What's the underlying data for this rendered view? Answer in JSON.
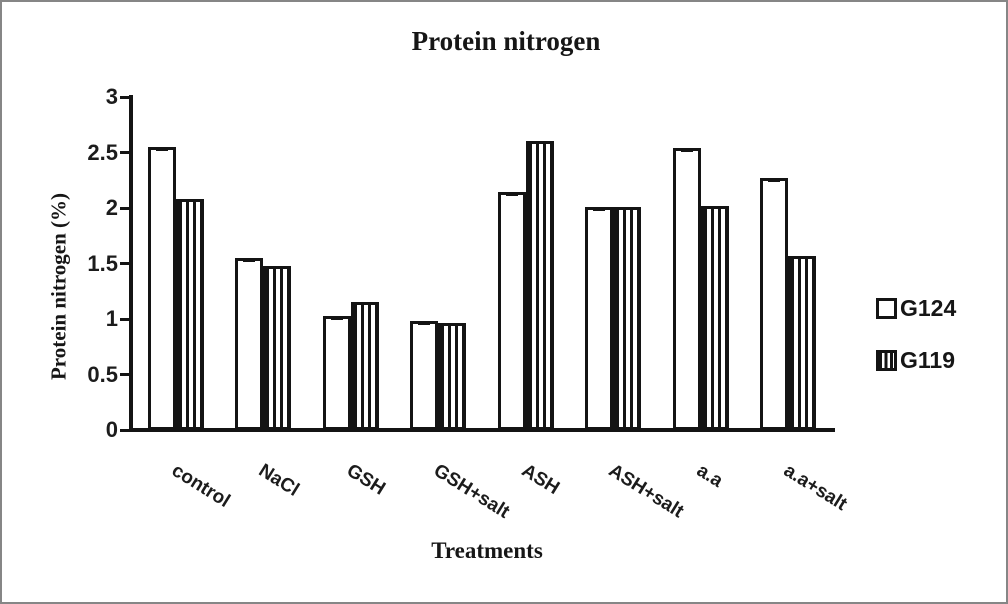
{
  "frame": {
    "border_color": "#868686",
    "background_color": "#ffffff",
    "ink_color": "#141414"
  },
  "chart_data": {
    "type": "bar",
    "title": "Protein nitrogen",
    "xlabel": "Treatments",
    "ylabel": "Protein nitrogen (%)",
    "categories": [
      "control",
      "NaCl",
      "GSH",
      "GSH+salt",
      "ASH",
      "ASH+salt",
      "a.a",
      "a.a+salt"
    ],
    "series": [
      {
        "name": "G124",
        "pattern": "white-fill",
        "values": [
          2.55,
          1.55,
          1.03,
          0.98,
          2.14,
          2.01,
          2.54,
          2.27
        ]
      },
      {
        "name": "G119",
        "pattern": "vertical-stripes",
        "values": [
          2.08,
          1.48,
          1.15,
          0.96,
          2.6,
          2.01,
          2.02,
          1.57
        ]
      }
    ],
    "ylim": [
      0,
      3
    ],
    "yticks": [
      0,
      0.5,
      1,
      1.5,
      2,
      2.5,
      3
    ],
    "grid": false,
    "legend_position": "right"
  },
  "legend": {
    "items": [
      {
        "label": "G124",
        "swatch": "white-square"
      },
      {
        "label": "G119",
        "swatch": "striped-square"
      }
    ]
  }
}
